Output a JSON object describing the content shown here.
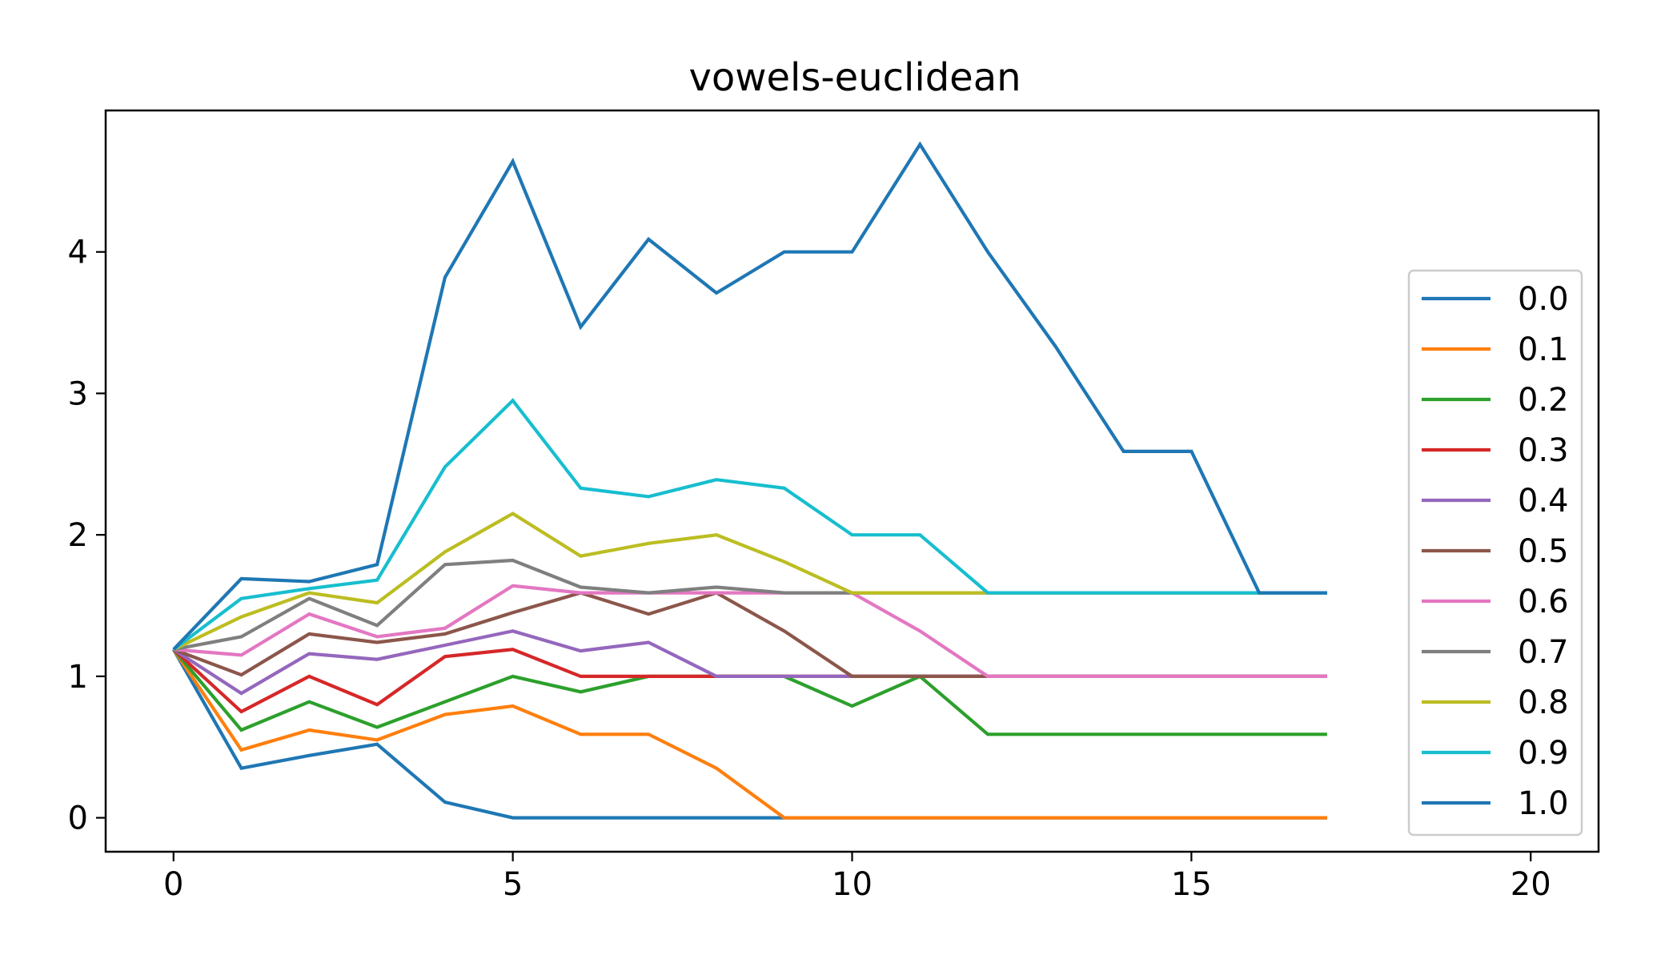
{
  "chart_data": {
    "type": "line",
    "title": "vowels-euclidean",
    "xlabel": "",
    "ylabel": "",
    "xlim": [
      -1,
      21
    ],
    "ylim": [
      -0.24,
      5.0
    ],
    "xticks": [
      0,
      5,
      10,
      15,
      20
    ],
    "yticks": [
      0,
      1,
      2,
      3,
      4
    ],
    "legend_position": "right",
    "grid": false,
    "x": [
      0,
      1,
      2,
      3,
      4,
      5,
      6,
      7,
      8,
      9,
      10,
      11,
      12,
      13,
      14,
      15,
      16,
      17
    ],
    "series": [
      {
        "name": "0.0",
        "color": "#1f77b4",
        "values": [
          1.19,
          0.35,
          0.44,
          0.52,
          0.11,
          0.0,
          0.0,
          0.0,
          0.0,
          0.0,
          0.0,
          0.0,
          0.0,
          0.0,
          0.0,
          0.0,
          0.0,
          0.0
        ]
      },
      {
        "name": "0.1",
        "color": "#ff7f0e",
        "values": [
          1.19,
          0.48,
          0.62,
          0.55,
          0.73,
          0.79,
          0.59,
          0.59,
          0.35,
          0.0,
          0.0,
          0.0,
          0.0,
          0.0,
          0.0,
          0.0,
          0.0,
          0.0
        ]
      },
      {
        "name": "0.2",
        "color": "#2ca02c",
        "values": [
          1.19,
          0.62,
          0.82,
          0.64,
          0.82,
          1.0,
          0.89,
          1.0,
          1.0,
          1.0,
          0.79,
          1.0,
          0.59,
          0.59,
          0.59,
          0.59,
          0.59,
          0.59
        ]
      },
      {
        "name": "0.3",
        "color": "#d62728",
        "values": [
          1.19,
          0.75,
          1.0,
          0.8,
          1.14,
          1.19,
          1.0,
          1.0,
          1.0,
          1.0,
          1.0,
          1.0,
          1.0,
          1.0,
          1.0,
          1.0,
          1.0,
          1.0
        ]
      },
      {
        "name": "0.4",
        "color": "#9467bd",
        "values": [
          1.19,
          0.88,
          1.16,
          1.12,
          1.22,
          1.32,
          1.18,
          1.24,
          1.0,
          1.0,
          1.0,
          1.0,
          1.0,
          1.0,
          1.0,
          1.0,
          1.0,
          1.0
        ]
      },
      {
        "name": "0.5",
        "color": "#8c564b",
        "values": [
          1.19,
          1.01,
          1.3,
          1.24,
          1.3,
          1.45,
          1.59,
          1.44,
          1.59,
          1.32,
          1.0,
          1.0,
          1.0,
          1.0,
          1.0,
          1.0,
          1.0,
          1.0
        ]
      },
      {
        "name": "0.6",
        "color": "#e377c2",
        "values": [
          1.19,
          1.15,
          1.44,
          1.28,
          1.34,
          1.64,
          1.59,
          1.59,
          1.59,
          1.59,
          1.59,
          1.32,
          1.0,
          1.0,
          1.0,
          1.0,
          1.0,
          1.0
        ]
      },
      {
        "name": "0.7",
        "color": "#7f7f7f",
        "values": [
          1.19,
          1.28,
          1.55,
          1.36,
          1.79,
          1.82,
          1.63,
          1.59,
          1.63,
          1.59,
          1.59,
          1.59,
          1.59,
          1.59,
          1.59,
          1.59,
          1.59,
          1.59
        ]
      },
      {
        "name": "0.8",
        "color": "#bcbd22",
        "values": [
          1.19,
          1.42,
          1.59,
          1.52,
          1.88,
          2.15,
          1.85,
          1.94,
          2.0,
          1.81,
          1.59,
          1.59,
          1.59,
          1.59,
          1.59,
          1.59,
          1.59,
          1.59
        ]
      },
      {
        "name": "0.9",
        "color": "#17becf",
        "values": [
          1.19,
          1.55,
          1.62,
          1.68,
          2.48,
          2.95,
          2.33,
          2.27,
          2.39,
          2.33,
          2.0,
          2.0,
          1.59,
          1.59,
          1.59,
          1.59,
          1.59,
          1.59
        ]
      },
      {
        "name": "1.0",
        "color": "#1f77b4",
        "values": [
          1.19,
          1.69,
          1.67,
          1.79,
          3.82,
          4.64,
          3.47,
          4.09,
          3.71,
          4.0,
          4.0,
          4.76,
          4.0,
          3.33,
          2.59,
          2.59,
          1.59,
          1.59
        ]
      }
    ]
  }
}
